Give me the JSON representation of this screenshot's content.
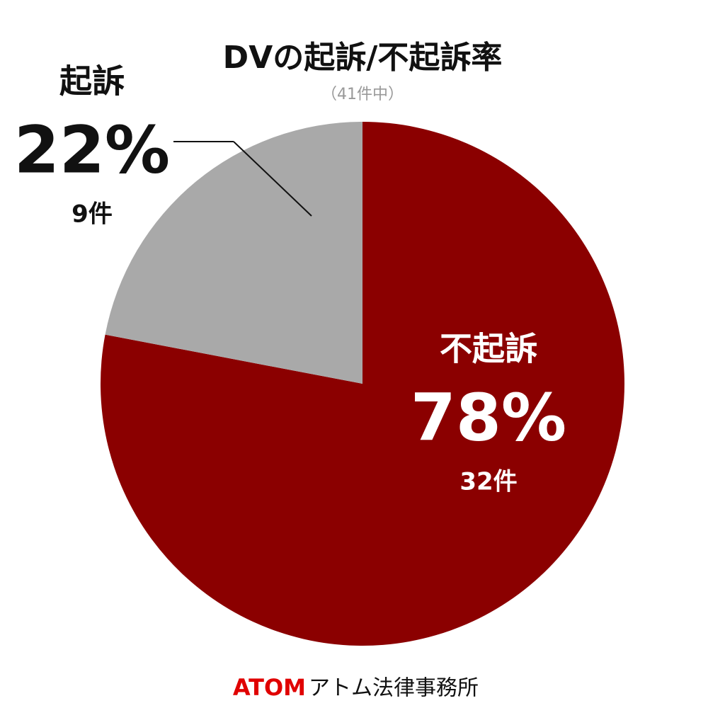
{
  "chart_data": {
    "type": "pie",
    "title": "DVの起訴/不起訴率",
    "subtitle": "（41件中）",
    "categories": [
      "不起訴",
      "起訴"
    ],
    "values": [
      78,
      22
    ],
    "value_labels": [
      "78%",
      "22%"
    ],
    "count_labels": [
      "32件",
      "9件"
    ],
    "colors": [
      "#8b0000",
      "#a9a9a9"
    ],
    "brand": "ATOM",
    "source": "アトム法律事務所"
  }
}
